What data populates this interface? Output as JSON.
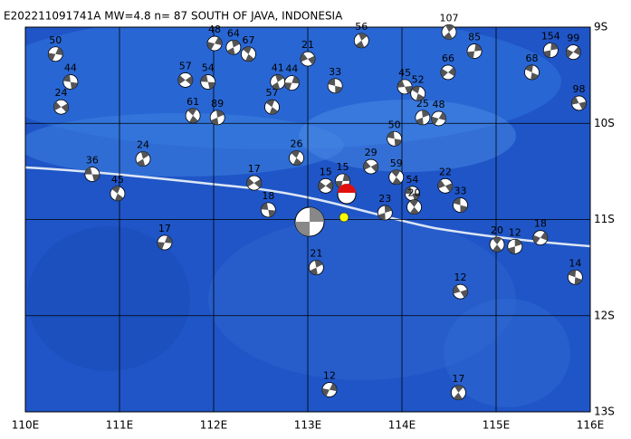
{
  "title": "E202211091741A MW=4.8 n= 87 SOUTH OF JAVA, INDONESIA",
  "xlim": [
    110,
    116
  ],
  "ylim": [
    -13,
    -9
  ],
  "xticks": [
    {
      "value": 110,
      "label": "110E"
    },
    {
      "value": 111,
      "label": "111E"
    },
    {
      "value": 112,
      "label": "112E"
    },
    {
      "value": 113,
      "label": "113E"
    },
    {
      "value": 114,
      "label": "114E"
    },
    {
      "value": 115,
      "label": "115E"
    },
    {
      "value": 116,
      "label": "116E"
    }
  ],
  "yticks": [
    {
      "value": -9,
      "label": "9S"
    },
    {
      "value": -10,
      "label": "10S"
    },
    {
      "value": -11,
      "label": "11S"
    },
    {
      "value": -12,
      "label": "12S"
    },
    {
      "value": -13,
      "label": "13S"
    }
  ],
  "events": [
    {
      "lon": 110.71,
      "lat": -10.53,
      "depth": 36
    },
    {
      "lon": 110.98,
      "lat": -10.73,
      "depth": 45
    },
    {
      "lon": 111.25,
      "lat": -10.37,
      "depth": 24
    },
    {
      "lon": 111.48,
      "lat": -11.24,
      "depth": 17
    },
    {
      "lon": 112.43,
      "lat": -10.62,
      "depth": 17
    },
    {
      "lon": 112.58,
      "lat": -10.9,
      "depth": 18
    },
    {
      "lon": 112.88,
      "lat": -10.36,
      "depth": 26
    },
    {
      "lon": 113.09,
      "lat": -11.5,
      "depth": 21
    },
    {
      "lon": 113.23,
      "lat": -12.77,
      "depth": 12
    },
    {
      "lon": 113.67,
      "lat": -10.45,
      "depth": 29
    },
    {
      "lon": 113.92,
      "lat": -10.16,
      "depth": 50
    },
    {
      "lon": 113.94,
      "lat": -10.56,
      "depth": 59
    },
    {
      "lon": 114.22,
      "lat": -9.94,
      "depth": 25
    },
    {
      "lon": 114.39,
      "lat": -9.95,
      "depth": 48
    },
    {
      "lon": 114.46,
      "lat": -10.65,
      "depth": 22
    },
    {
      "lon": 114.62,
      "lat": -10.85,
      "depth": 33
    },
    {
      "lon": 115.01,
      "lat": -11.26,
      "depth": 20
    },
    {
      "lon": 115.2,
      "lat": -11.28,
      "depth": 12
    },
    {
      "lon": 115.47,
      "lat": -11.19,
      "depth": 18
    },
    {
      "lon": 114.62,
      "lat": -11.75,
      "depth": 12
    },
    {
      "lon": 115.84,
      "lat": -11.6,
      "depth": 14
    },
    {
      "lon": 114.6,
      "lat": -12.8,
      "depth": 17
    },
    {
      "lon": 115.58,
      "lat": -9.24,
      "depth": 154
    },
    {
      "lon": 115.82,
      "lat": -9.26,
      "depth": 99
    },
    {
      "lon": 115.88,
      "lat": -9.79,
      "depth": 98
    },
    {
      "lon": 115.38,
      "lat": -9.47,
      "depth": 68
    },
    {
      "lon": 114.5,
      "lat": -9.05,
      "depth": 107
    },
    {
      "lon": 114.77,
      "lat": -9.25,
      "depth": 85
    },
    {
      "lon": 114.49,
      "lat": -9.47,
      "depth": 66
    },
    {
      "lon": 114.03,
      "lat": -9.62,
      "depth": 45
    },
    {
      "lon": 114.17,
      "lat": -9.69,
      "depth": 52
    },
    {
      "lon": 113.57,
      "lat": -9.14,
      "depth": 56
    },
    {
      "lon": 113.37,
      "lat": -10.6,
      "depth": 15
    },
    {
      "lon": 113.19,
      "lat": -10.65,
      "depth": 15
    },
    {
      "lon": 114.11,
      "lat": -10.73,
      "depth": 54
    },
    {
      "lon": 112.62,
      "lat": -9.83,
      "depth": 57
    },
    {
      "lon": 112.68,
      "lat": -9.57,
      "depth": 41
    },
    {
      "lon": 112.83,
      "lat": -9.58,
      "depth": 44
    },
    {
      "lon": 111.7,
      "lat": -9.55,
      "depth": 57
    },
    {
      "lon": 111.94,
      "lat": -9.57,
      "depth": 54
    },
    {
      "lon": 112.37,
      "lat": -9.28,
      "depth": 67
    },
    {
      "lon": 112.21,
      "lat": -9.21,
      "depth": 64
    },
    {
      "lon": 110.32,
      "lat": -9.28,
      "depth": 50
    },
    {
      "lon": 110.38,
      "lat": -9.83,
      "depth": 24
    },
    {
      "lon": 110.48,
      "lat": -9.57,
      "depth": 44
    },
    {
      "lon": 111.78,
      "lat": -9.92,
      "depth": 61
    },
    {
      "lon": 112.04,
      "lat": -9.94,
      "depth": 89
    },
    {
      "lon": 112.01,
      "lat": -9.17,
      "depth": 48
    },
    {
      "lon": 113.0,
      "lat": -9.33,
      "depth": 21
    },
    {
      "lon": 113.29,
      "lat": -9.61,
      "depth": 33
    },
    {
      "lon": 114.13,
      "lat": -10.87,
      "depth": 20
    },
    {
      "lon": 113.82,
      "lat": -10.93,
      "depth": 23
    }
  ]
}
